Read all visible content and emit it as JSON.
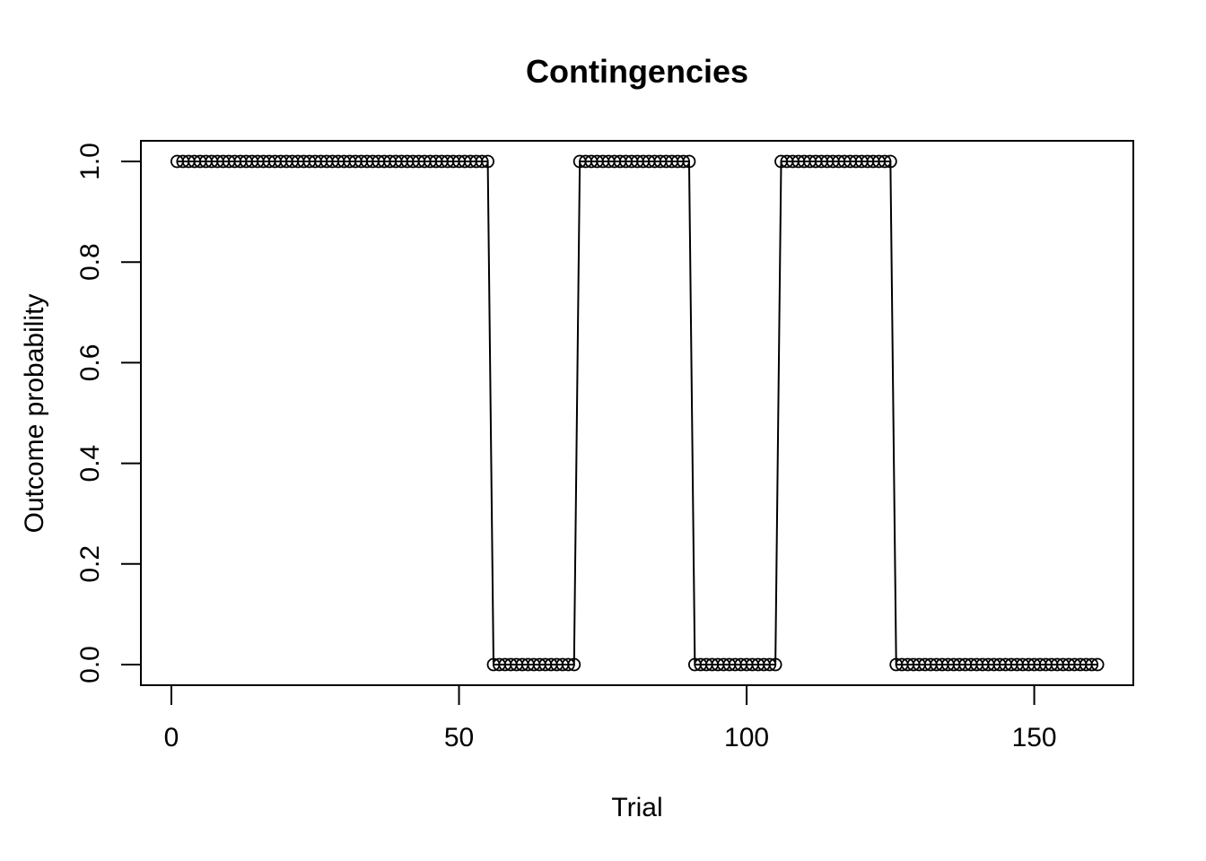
{
  "chart_data": {
    "type": "line",
    "title": "Contingencies",
    "xlabel": "Trial",
    "ylabel": "Outcome probability",
    "xlim": [
      0,
      161
    ],
    "ylim": [
      0,
      1
    ],
    "x_ticks": [
      0,
      50,
      100,
      150
    ],
    "x_tick_labels": [
      "0",
      "50",
      "100",
      "150"
    ],
    "y_ticks": [
      0,
      0.2,
      0.4,
      0.6,
      0.8,
      1.0
    ],
    "y_tick_labels": [
      "0.0",
      "0.2",
      "0.4",
      "0.6",
      "0.8",
      "1.0"
    ],
    "grid": false,
    "series": [
      {
        "marker": "open-circle",
        "segments": [
          {
            "x_start": 1,
            "x_end": 55,
            "y": 1
          },
          {
            "x_start": 56,
            "x_end": 70,
            "y": 0
          },
          {
            "x_start": 71,
            "x_end": 90,
            "y": 1
          },
          {
            "x_start": 91,
            "x_end": 105,
            "y": 0
          },
          {
            "x_start": 106,
            "x_end": 125,
            "y": 1
          },
          {
            "x_start": 126,
            "x_end": 161,
            "y": 0
          }
        ]
      }
    ],
    "colors": {
      "line": "#000000",
      "marker": "#000000",
      "background": "#ffffff"
    }
  }
}
